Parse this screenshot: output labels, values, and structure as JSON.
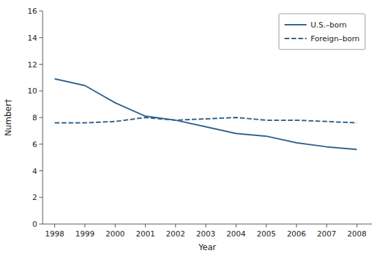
{
  "chart_data": {
    "type": "line",
    "xlabel": "Year",
    "ylabel": "Number†",
    "x": [
      1998,
      1999,
      2000,
      2001,
      2002,
      2003,
      2004,
      2005,
      2006,
      2007,
      2008
    ],
    "series": [
      {
        "name": "U.S.–born",
        "color": "#2e5f8a",
        "line_style": "solid",
        "values": [
          10.9,
          10.4,
          9.1,
          8.1,
          7.8,
          7.3,
          6.8,
          6.6,
          6.1,
          5.8,
          5.6
        ]
      },
      {
        "name": "Foreign–born",
        "color": "#2e5f8a",
        "line_style": "dashed",
        "values": [
          7.6,
          7.6,
          7.7,
          8.0,
          7.8,
          7.9,
          8.0,
          7.8,
          7.8,
          7.7,
          7.6
        ]
      }
    ],
    "xlim": [
      1997.6,
      2008.5
    ],
    "xticks": [
      1998,
      1999,
      2000,
      2001,
      2002,
      2003,
      2004,
      2005,
      2006,
      2007,
      2008
    ],
    "ylim": [
      0,
      16
    ],
    "yticks": [
      0,
      2,
      4,
      6,
      8,
      10,
      12,
      14,
      16
    ],
    "grid": false,
    "legend": "upper right"
  }
}
